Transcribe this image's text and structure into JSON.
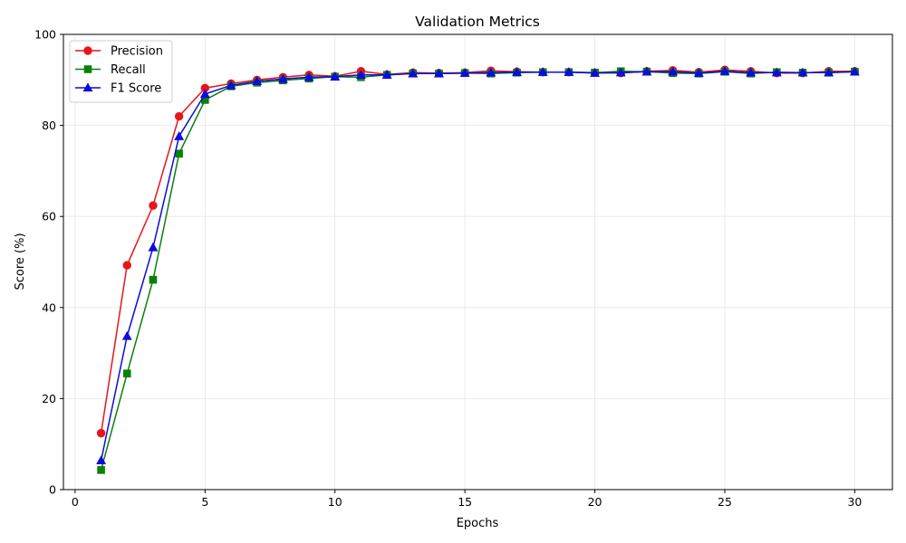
{
  "chart_data": {
    "type": "line",
    "title": "Validation Metrics",
    "xlabel": "Epochs",
    "ylabel": "Score (%)",
    "xlim": [
      -0.45,
      31.45
    ],
    "ylim": [
      0,
      100
    ],
    "xticks": [
      0,
      5,
      10,
      15,
      20,
      25,
      30
    ],
    "yticks": [
      0,
      20,
      40,
      60,
      80,
      100
    ],
    "grid": true,
    "legend_position": "top-left",
    "x": [
      1,
      2,
      3,
      4,
      5,
      6,
      7,
      8,
      9,
      10,
      11,
      12,
      13,
      14,
      15,
      16,
      17,
      18,
      19,
      20,
      21,
      22,
      23,
      24,
      25,
      26,
      27,
      28,
      29,
      30
    ],
    "series": [
      {
        "name": "Precision",
        "color": "#e8151b",
        "marker": "circle",
        "values": [
          12.4,
          49.3,
          62.4,
          82.0,
          88.2,
          89.2,
          90.0,
          90.6,
          91.1,
          90.8,
          91.9,
          91.2,
          91.6,
          91.5,
          91.6,
          92.0,
          91.8,
          91.7,
          91.7,
          91.6,
          91.5,
          91.9,
          92.1,
          91.7,
          92.2,
          91.9,
          91.5,
          91.5,
          91.9,
          91.9
        ]
      },
      {
        "name": "Recall",
        "color": "#0b800b",
        "marker": "square",
        "values": [
          4.3,
          25.5,
          46.1,
          73.8,
          85.6,
          88.6,
          89.4,
          89.9,
          90.3,
          90.7,
          90.6,
          91.1,
          91.4,
          91.4,
          91.5,
          91.4,
          91.6,
          91.7,
          91.7,
          91.6,
          91.9,
          91.8,
          91.5,
          91.4,
          91.8,
          91.4,
          91.7,
          91.6,
          91.6,
          91.8
        ]
      },
      {
        "name": "F1 Score",
        "color": "#0c0cdc",
        "marker": "triangle",
        "values": [
          6.4,
          33.7,
          53.2,
          77.6,
          86.9,
          88.8,
          89.7,
          90.2,
          90.6,
          90.7,
          91.1,
          91.1,
          91.4,
          91.4,
          91.5,
          91.6,
          91.7,
          91.7,
          91.7,
          91.5,
          91.6,
          91.8,
          91.8,
          91.5,
          91.9,
          91.6,
          91.6,
          91.6,
          91.6,
          91.8
        ]
      }
    ]
  }
}
